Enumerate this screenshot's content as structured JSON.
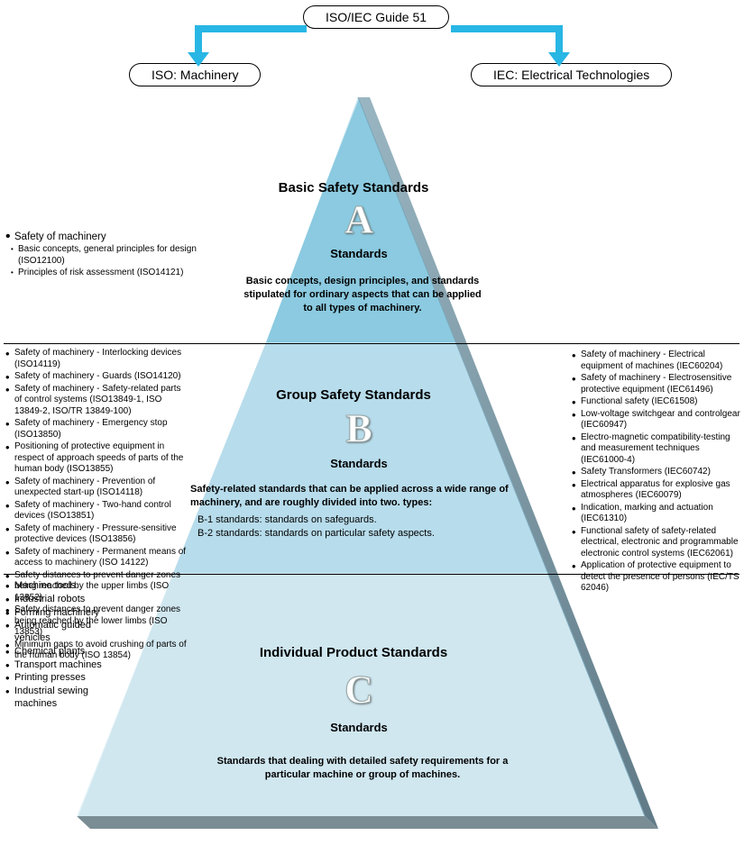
{
  "top": {
    "root": "ISO/IEC Guide 51",
    "left": "ISO: Machinery",
    "right": "IEC: Electrical Technologies"
  },
  "colors": {
    "arrow": "#28b6e4",
    "tierA": "#8bcae0",
    "tierB": "#b7dceb",
    "tierC": "#d0e7f0",
    "shadow": "#808a8f",
    "edge_light": "#cfe6f0",
    "edge_dark": "#6a8a98"
  },
  "tiers": {
    "a": {
      "title": "Basic Safety Standards",
      "letter": "A",
      "sub": "Standards",
      "desc": "Basic concepts, design principles, and standards stipulated for ordinary aspects that can be applied to all types of machinery."
    },
    "b": {
      "title": "Group Safety Standards",
      "letter": "B",
      "sub": "Standards",
      "desc_intro": "Safety-related standards that can be applied across a wide range of machinery, and are roughly divided into two. types:",
      "desc_b1": "B-1 standards: standards on safeguards.",
      "desc_b2": "B-2 standards: standards on particular safety aspects."
    },
    "c": {
      "title": "Individual Product Standards",
      "letter": "C",
      "sub": "Standards",
      "desc": "Standards that dealing with detailed safety requirements for a particular machine or group of machines."
    }
  },
  "lists": {
    "a_left_head": "Safety of machinery",
    "a_left": [
      "Basic concepts, general principles for design (ISO12100)",
      "Principles of risk assessment (ISO14121)"
    ],
    "b_left": [
      "Safety of machinery - Interlocking devices (ISO14119)",
      "Safety of machinery - Guards (ISO14120)",
      "Safety of machinery - Safety-related parts of control systems (ISO13849-1, ISO 13849-2, ISO/TR 13849-100)",
      "Safety of machinery - Emergency stop (ISO13850)",
      "Positioning of protective equipment in respect of approach speeds of parts of the human body (ISO13855)",
      "Safety of machinery - Prevention of unexpected start-up (ISO14118)",
      "Safety of machinery - Two-hand control devices (ISO13851)",
      "Safety of machinery - Pressure-sensitive protective devices (ISO13856)",
      "Safety of machinery - Permanent means of access to machinery (ISO 14122)",
      "Safety distances to prevent danger zones being reached by the upper limbs (ISO 13852)",
      "Safety distances to prevent danger zones being reached by the lower limbs (ISO 13853)",
      "Minimum gaps to avoid crushing of parts of the human body (ISO 13854)"
    ],
    "b_right": [
      "Safety of machinery - Electrical equipment of machines (IEC60204)",
      "Safety of machinery - Electrosensitive protective equipment (IEC61496)",
      "Functional safety (IEC61508)",
      "Low-voltage switchgear and controlgear (IEC60947)",
      "Electro-magnetic compatibility-testing and measurement techniques (IEC61000-4)",
      "Safety Transformers (IEC60742)",
      "Electrical apparatus for explosive gas atmospheres (IEC60079)",
      "Indication, marking and actuation (IEC61310)",
      "Functional safety of safety-related electrical, electronic and programmable electronic control systems (IEC62061)",
      "Application of protective equipment to detect the presence of persons (IEC/TS 62046)"
    ],
    "c_left": [
      "Machine tools",
      "Industrial robots",
      "Forming machinery",
      "Automatic guided vehicles",
      "Chemical plants",
      "Transport machines",
      "Printing presses",
      "Industrial sewing machines"
    ]
  }
}
